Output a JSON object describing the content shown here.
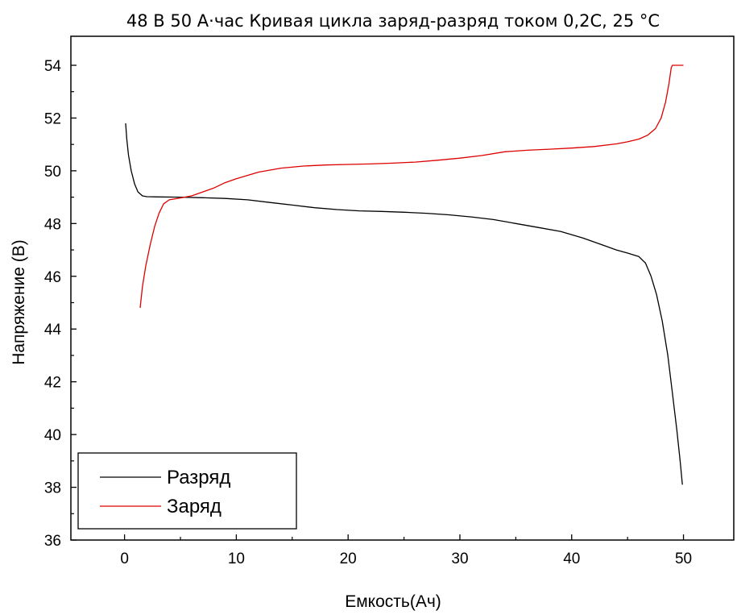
{
  "chart_data": {
    "type": "line",
    "title": "48 В 50 А·час Кривая цикла заряд-разряд током 0,2С, 25 °С",
    "xlabel": "Емкость(Ач)",
    "ylabel": "Напряжение (В)",
    "xlim": [
      -4.8,
      54.5
    ],
    "ylim": [
      36,
      55.1
    ],
    "xticks": [
      0,
      10,
      20,
      30,
      40,
      50
    ],
    "yticks": [
      36,
      38,
      40,
      42,
      44,
      46,
      48,
      50,
      52,
      54
    ],
    "grid": false,
    "legend": "bottom-left",
    "series": [
      {
        "name": "Разряд",
        "color": "#000000",
        "points": [
          [
            0.1,
            51.8
          ],
          [
            0.2,
            51.2
          ],
          [
            0.35,
            50.6
          ],
          [
            0.6,
            50.0
          ],
          [
            0.9,
            49.5
          ],
          [
            1.2,
            49.2
          ],
          [
            1.6,
            49.05
          ],
          [
            2.0,
            49.02
          ],
          [
            3,
            49.01
          ],
          [
            5,
            49.0
          ],
          [
            7,
            48.98
          ],
          [
            9,
            48.95
          ],
          [
            11,
            48.9
          ],
          [
            13,
            48.8
          ],
          [
            15,
            48.7
          ],
          [
            17,
            48.6
          ],
          [
            19,
            48.53
          ],
          [
            21,
            48.48
          ],
          [
            23,
            48.46
          ],
          [
            25,
            48.43
          ],
          [
            27,
            48.39
          ],
          [
            29,
            48.33
          ],
          [
            31,
            48.25
          ],
          [
            33,
            48.15
          ],
          [
            35,
            48.0
          ],
          [
            37,
            47.85
          ],
          [
            39,
            47.7
          ],
          [
            41,
            47.45
          ],
          [
            43,
            47.15
          ],
          [
            44,
            47.0
          ],
          [
            45,
            46.88
          ],
          [
            46,
            46.75
          ],
          [
            46.6,
            46.5
          ],
          [
            47.1,
            46.0
          ],
          [
            47.6,
            45.3
          ],
          [
            48.1,
            44.3
          ],
          [
            48.6,
            43.0
          ],
          [
            49.0,
            41.6
          ],
          [
            49.4,
            40.2
          ],
          [
            49.7,
            39.0
          ],
          [
            49.9,
            38.1
          ]
        ]
      },
      {
        "name": "Заряд",
        "color": "#dd0000",
        "points": [
          [
            1.4,
            44.8
          ],
          [
            1.6,
            45.6
          ],
          [
            1.9,
            46.4
          ],
          [
            2.3,
            47.2
          ],
          [
            2.7,
            47.9
          ],
          [
            3.1,
            48.4
          ],
          [
            3.5,
            48.75
          ],
          [
            4.0,
            48.9
          ],
          [
            5,
            48.97
          ],
          [
            6,
            49.05
          ],
          [
            7,
            49.2
          ],
          [
            8,
            49.35
          ],
          [
            9,
            49.55
          ],
          [
            10,
            49.7
          ],
          [
            12,
            49.95
          ],
          [
            14,
            50.1
          ],
          [
            16,
            50.18
          ],
          [
            18,
            50.22
          ],
          [
            20,
            50.24
          ],
          [
            22,
            50.26
          ],
          [
            24,
            50.29
          ],
          [
            26,
            50.33
          ],
          [
            28,
            50.4
          ],
          [
            30,
            50.48
          ],
          [
            32,
            50.58
          ],
          [
            34,
            50.72
          ],
          [
            36,
            50.78
          ],
          [
            38,
            50.82
          ],
          [
            40,
            50.86
          ],
          [
            42,
            50.92
          ],
          [
            44,
            51.02
          ],
          [
            45,
            51.1
          ],
          [
            46,
            51.2
          ],
          [
            46.8,
            51.35
          ],
          [
            47.5,
            51.6
          ],
          [
            48.0,
            52.0
          ],
          [
            48.4,
            52.6
          ],
          [
            48.7,
            53.3
          ],
          [
            48.9,
            53.9
          ],
          [
            49.0,
            54.0
          ],
          [
            50.0,
            54.0
          ]
        ]
      }
    ]
  }
}
